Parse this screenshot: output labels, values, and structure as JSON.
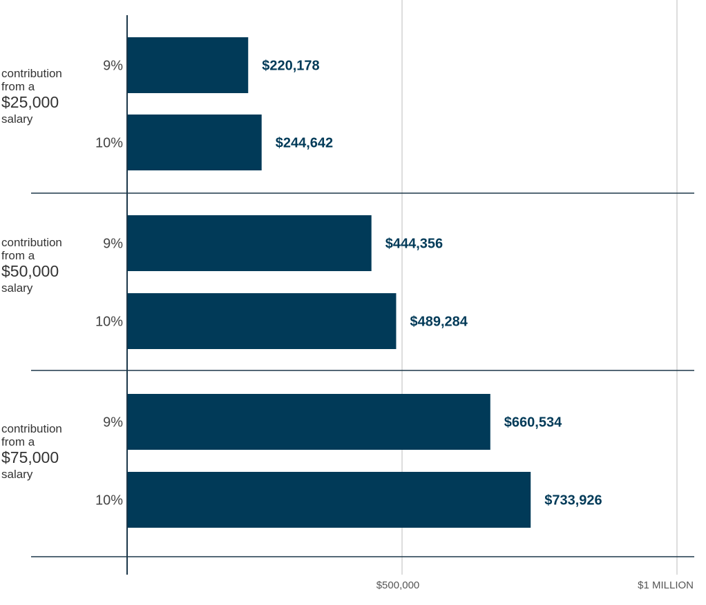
{
  "chart_data": {
    "type": "bar",
    "orientation": "horizontal",
    "xlim": [
      0,
      1000000
    ],
    "x_ticks": [
      {
        "value": 500000,
        "label": "$500,000"
      },
      {
        "value": 1000000,
        "label": "$1 MILLION"
      }
    ],
    "groups": [
      {
        "label_top": "contribution",
        "label_mid": "from a",
        "label_amount": "$25,000",
        "label_bottom": "salary",
        "bars": [
          {
            "category": "9%",
            "value": 220178,
            "value_label": "$220,178"
          },
          {
            "category": "10%",
            "value": 244642,
            "value_label": "$244,642"
          }
        ]
      },
      {
        "label_top": "contribution",
        "label_mid": "from a",
        "label_amount": "$50,000",
        "label_bottom": "salary",
        "bars": [
          {
            "category": "9%",
            "value": 444356,
            "value_label": "$444,356"
          },
          {
            "category": "10%",
            "value": 489284,
            "value_label": "$489,284"
          }
        ]
      },
      {
        "label_top": "contribution",
        "label_mid": "from a",
        "label_amount": "$75,000",
        "label_bottom": "salary",
        "bars": [
          {
            "category": "9%",
            "value": 660534,
            "value_label": "$660,534"
          },
          {
            "category": "10%",
            "value": 733926,
            "value_label": "$733,926"
          }
        ]
      }
    ],
    "colors": {
      "bar": "#013a58",
      "value_label": "#013a58",
      "category_label": "#444444",
      "gridline": "#dddddd",
      "axis": "#1b3648",
      "tick_label": "#555555"
    }
  }
}
